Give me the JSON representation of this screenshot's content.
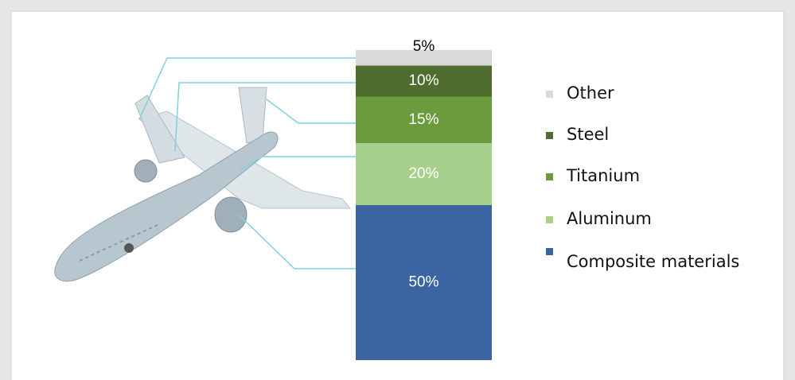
{
  "chart_data": {
    "type": "stacked-bar",
    "categories": [
      null
    ],
    "ylim": [
      0,
      100
    ],
    "series": [
      {
        "name": "Other",
        "color": "#d9d9d9",
        "values": [
          5
        ],
        "value_labels": [
          "5%"
        ]
      },
      {
        "name": "Steel",
        "color": "#4f6d2f",
        "values": [
          10
        ],
        "value_labels": [
          "10%"
        ]
      },
      {
        "name": "Titanium",
        "color": "#6c9b3e",
        "values": [
          15
        ],
        "value_labels": [
          "15%"
        ]
      },
      {
        "name": "Aluminum",
        "color": "#a8d08d",
        "values": [
          20
        ],
        "value_labels": [
          "20%"
        ]
      },
      {
        "name": "Composite materials",
        "color": "#3b64a0",
        "values": [
          50
        ],
        "value_labels": [
          "50%"
        ]
      }
    ]
  }
}
